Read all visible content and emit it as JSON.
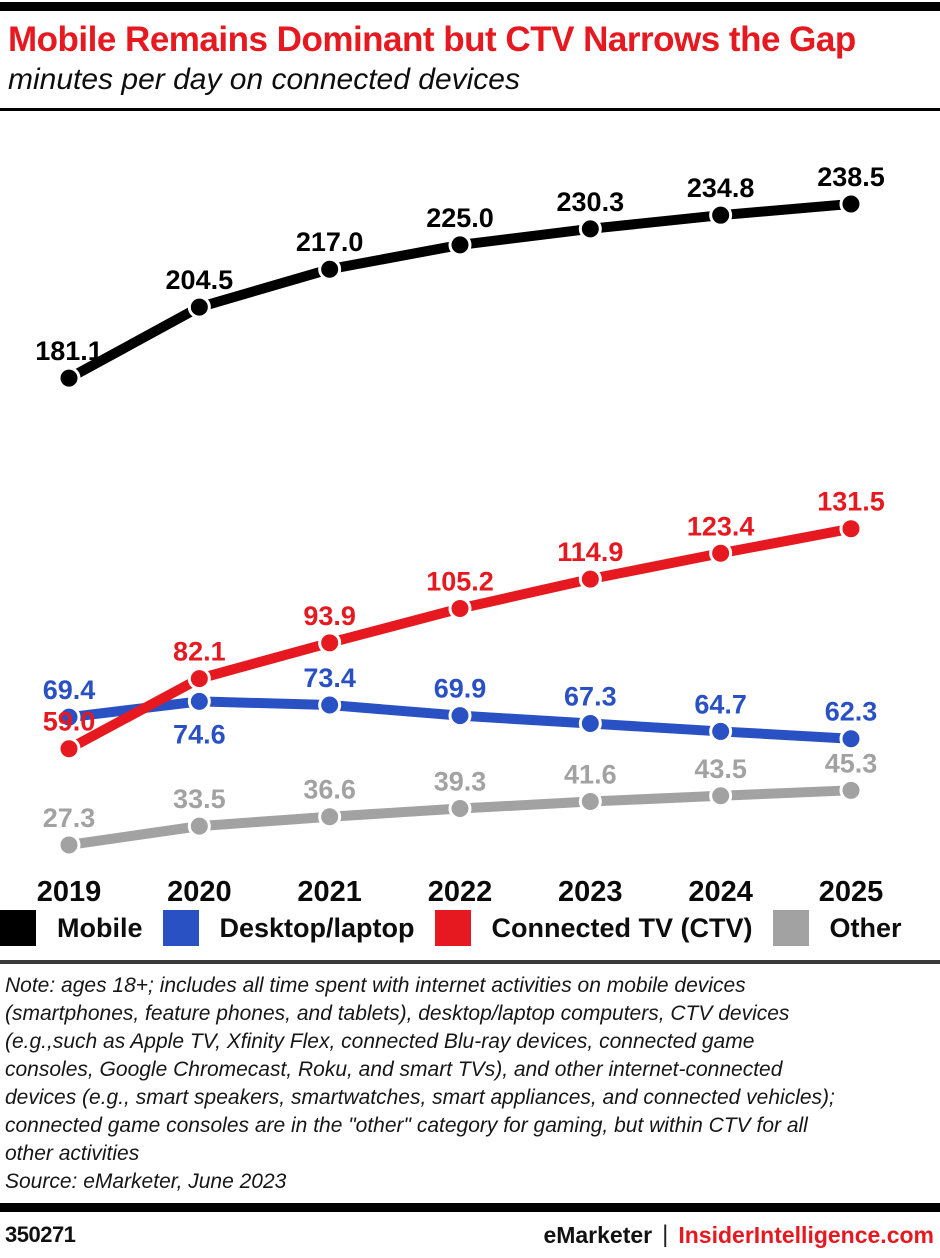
{
  "header": {
    "title": "Mobile Remains Dominant but CTV Narrows the Gap",
    "subtitle": "minutes per day on connected devices"
  },
  "chart_data": {
    "type": "line",
    "title": "Mobile Remains Dominant but CTV Narrows the Gap",
    "subtitle": "minutes per day on connected devices",
    "categories": [
      "2019",
      "2020",
      "2021",
      "2022",
      "2023",
      "2024",
      "2025"
    ],
    "series": [
      {
        "name": "Mobile",
        "color": "#000000",
        "values": [
          181.1,
          204.5,
          217.0,
          225.0,
          230.3,
          234.8,
          238.5
        ],
        "labels_below": []
      },
      {
        "name": "Desktop/laptop",
        "color": "#2a51c4",
        "values": [
          69.4,
          74.6,
          73.4,
          69.9,
          67.3,
          64.7,
          62.3
        ],
        "labels_below": [
          1
        ]
      },
      {
        "name": "Connected TV (CTV)",
        "color": "#e5191f",
        "values": [
          59.0,
          82.1,
          93.9,
          105.2,
          114.9,
          123.4,
          131.5
        ],
        "labels_below": []
      },
      {
        "name": "Other",
        "color": "#a3a2a2",
        "values": [
          27.3,
          33.5,
          36.6,
          39.3,
          41.6,
          43.5,
          45.3
        ],
        "labels_below": []
      }
    ],
    "xlabel": "",
    "ylabel": "minutes per day",
    "ylim": [
      0,
      265
    ],
    "grid": false,
    "y_axis_visible": false,
    "data_labels": true,
    "label_decimals": 1,
    "legend_position": "bottom"
  },
  "legend": {
    "items": [
      {
        "label": "Mobile",
        "color": "#000000"
      },
      {
        "label": "Desktop/laptop",
        "color": "#2a51c4"
      },
      {
        "label": "Connected TV (CTV)",
        "color": "#e5191f"
      },
      {
        "label": "Other",
        "color": "#a3a2a2"
      }
    ]
  },
  "note": {
    "lines": [
      "Note: ages 18+; includes all time spent with internet activities on mobile devices",
      "(smartphones, feature phones, and tablets), desktop/laptop computers, CTV devices",
      "(e.g.,such as Apple TV, Xfinity Flex, connected Blu-ray devices, connected game",
      "consoles, Google Chromecast, Roku, and smart TVs), and other internet-connected",
      "devices (e.g., smart speakers, smartwatches, smart appliances, and connected vehicles);",
      "connected game consoles are in the \"other\" category for gaming, but within CTV for all",
      "other activities"
    ],
    "source": "Source: eMarketer, June 2023"
  },
  "footer": {
    "chart_id": "350271",
    "brand": "eMarketer",
    "separator": "|",
    "site": "InsiderIntelligence.com"
  }
}
